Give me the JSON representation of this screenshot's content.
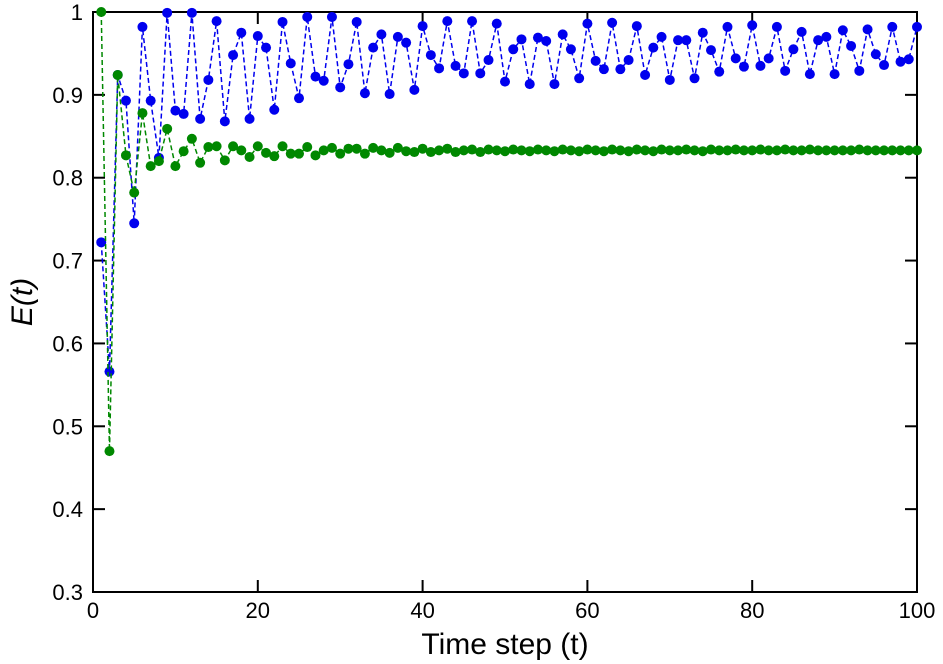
{
  "chart_data": {
    "type": "line",
    "xlabel": "Time step (t)",
    "ylabel": "E(t)",
    "xlim": [
      0,
      100
    ],
    "xticks": [
      0,
      20,
      40,
      60,
      80,
      100
    ],
    "ylim": [
      0.3,
      1
    ],
    "yticks": [
      0.3,
      0.4,
      0.5,
      0.6,
      0.7,
      0.8,
      0.9,
      1
    ],
    "x": [
      1,
      2,
      3,
      4,
      5,
      6,
      7,
      8,
      9,
      10,
      11,
      12,
      13,
      14,
      15,
      16,
      17,
      18,
      19,
      20,
      21,
      22,
      23,
      24,
      25,
      26,
      27,
      28,
      29,
      30,
      31,
      32,
      33,
      34,
      35,
      36,
      37,
      38,
      39,
      40,
      41,
      42,
      43,
      44,
      45,
      46,
      47,
      48,
      49,
      50,
      51,
      52,
      53,
      54,
      55,
      56,
      57,
      58,
      59,
      60,
      61,
      62,
      63,
      64,
      65,
      66,
      67,
      68,
      69,
      70,
      71,
      72,
      73,
      74,
      75,
      76,
      77,
      78,
      79,
      80,
      81,
      82,
      83,
      84,
      85,
      86,
      87,
      88,
      89,
      90,
      91,
      92,
      93,
      94,
      95,
      96,
      97,
      98,
      99,
      100
    ],
    "series": [
      {
        "color": "#0000ee",
        "values": [
          0.722,
          0.566,
          0.924,
          0.893,
          0.745,
          0.982,
          0.893,
          0.824,
          0.999,
          0.881,
          0.877,
          0.999,
          0.871,
          0.918,
          0.989,
          0.868,
          0.948,
          0.975,
          0.871,
          0.971,
          0.957,
          0.882,
          0.988,
          0.938,
          0.896,
          0.994,
          0.922,
          0.917,
          0.994,
          0.909,
          0.937,
          0.988,
          0.902,
          0.957,
          0.973,
          0.901,
          0.97,
          0.963,
          0.906,
          0.983,
          0.948,
          0.932,
          0.989,
          0.935,
          0.926,
          0.989,
          0.926,
          0.942,
          0.986,
          0.916,
          0.955,
          0.967,
          0.913,
          0.969,
          0.965,
          0.913,
          0.973,
          0.955,
          0.92,
          0.986,
          0.941,
          0.931,
          0.987,
          0.931,
          0.942,
          0.983,
          0.924,
          0.957,
          0.97,
          0.918,
          0.966,
          0.966,
          0.92,
          0.975,
          0.954,
          0.928,
          0.982,
          0.944,
          0.934,
          0.984,
          0.935,
          0.944,
          0.982,
          0.929,
          0.955,
          0.976,
          0.925,
          0.966,
          0.97,
          0.925,
          0.978,
          0.959,
          0.929,
          0.979,
          0.949,
          0.936,
          0.982,
          0.94,
          0.943,
          0.982
        ]
      },
      {
        "color": "#008800",
        "values": [
          1.0,
          0.47,
          0.924,
          0.827,
          0.782,
          0.878,
          0.814,
          0.82,
          0.859,
          0.814,
          0.832,
          0.847,
          0.818,
          0.837,
          0.838,
          0.821,
          0.838,
          0.833,
          0.825,
          0.838,
          0.83,
          0.826,
          0.838,
          0.829,
          0.829,
          0.837,
          0.827,
          0.833,
          0.836,
          0.829,
          0.835,
          0.835,
          0.829,
          0.836,
          0.833,
          0.83,
          0.836,
          0.832,
          0.831,
          0.835,
          0.831,
          0.833,
          0.835,
          0.831,
          0.833,
          0.834,
          0.831,
          0.834,
          0.833,
          0.832,
          0.834,
          0.833,
          0.832,
          0.834,
          0.833,
          0.832,
          0.834,
          0.833,
          0.832,
          0.834,
          0.833,
          0.832,
          0.834,
          0.833,
          0.832,
          0.834,
          0.833,
          0.832,
          0.834,
          0.833,
          0.833,
          0.834,
          0.833,
          0.832,
          0.834,
          0.833,
          0.833,
          0.834,
          0.833,
          0.833,
          0.834,
          0.833,
          0.833,
          0.834,
          0.833,
          0.833,
          0.834,
          0.833,
          0.833,
          0.833,
          0.833,
          0.833,
          0.834,
          0.833,
          0.833,
          0.833,
          0.833,
          0.833,
          0.833,
          0.833
        ]
      }
    ]
  }
}
